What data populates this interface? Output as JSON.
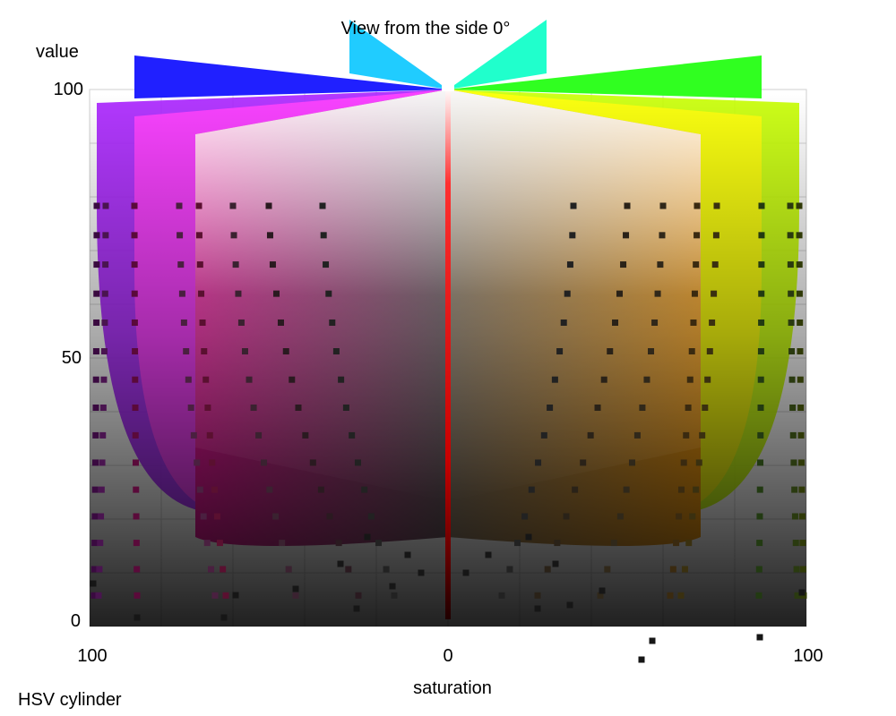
{
  "chart_data": {
    "type": "scatter",
    "title": "View from the side 0°",
    "xlabel": "saturation",
    "ylabel": "value",
    "footer": "HSV cylinder",
    "x_ticks": [
      "100",
      "0",
      "100"
    ],
    "y_ticks": [
      "0",
      "50",
      "100"
    ],
    "xlim": [
      -100,
      100
    ],
    "ylim": [
      0,
      100
    ],
    "grid": true,
    "legend": "none",
    "hue_families": [
      {
        "hue": "red",
        "color": "#ff0000",
        "side": "center"
      },
      {
        "hue": "orange",
        "color": "#ff9900",
        "side": "right"
      },
      {
        "hue": "yellow",
        "color": "#ffff00",
        "side": "right"
      },
      {
        "hue": "green",
        "color": "#00ff00",
        "side": "right"
      },
      {
        "hue": "cyan",
        "color": "#00ffff",
        "side": "center"
      },
      {
        "hue": "blue",
        "color": "#0000ff",
        "side": "left"
      },
      {
        "hue": "magenta",
        "color": "#ff00ff",
        "side": "left"
      },
      {
        "hue": "rose",
        "color": "#ff0077",
        "side": "left"
      }
    ]
  }
}
